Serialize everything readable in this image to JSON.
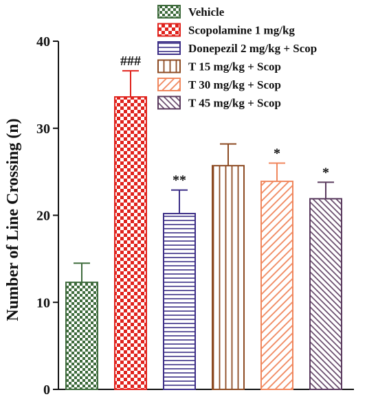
{
  "chart_data": {
    "type": "bar",
    "title": "",
    "xlabel": "",
    "ylabel": "Number of Line Crossing (n)",
    "ylim": [
      0,
      40
    ],
    "yticks": [
      "0",
      "10",
      "20",
      "30",
      "40"
    ],
    "legend_position": "top-right",
    "grid": false,
    "categories": [
      "Vehicle",
      "Scopolamine 1 mg/kg",
      "Donepezil 2 mg/kg + Scop",
      "T 15 mg/kg + Scop",
      "T 30 mg/kg + Scop",
      "T 45 mg/kg + Scop"
    ],
    "values": [
      12.3,
      33.6,
      20.2,
      25.7,
      23.9,
      21.9
    ],
    "errors": [
      2.2,
      3.0,
      2.7,
      2.5,
      2.1,
      1.9
    ],
    "annotations": [
      "",
      "###",
      "**",
      "",
      "*",
      "*"
    ],
    "colors": [
      "#3e6b3c",
      "#e0221c",
      "#3b2d86",
      "#8c4a22",
      "#f0865c",
      "#5a3a5e"
    ],
    "patterns": [
      "checker-small",
      "checker-large",
      "horizontal",
      "vertical",
      "diagonal",
      "diagonal-dense"
    ]
  }
}
